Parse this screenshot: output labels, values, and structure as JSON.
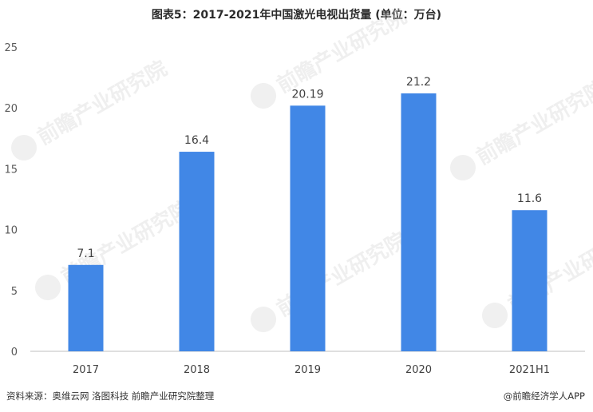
{
  "chart_data": {
    "type": "bar",
    "title": "图表5：2017-2021年中国激光电视出货量 (单位：万台)",
    "categories": [
      "2017",
      "2018",
      "2019",
      "2020",
      "2021H1"
    ],
    "values": [
      7.1,
      16.4,
      20.19,
      21.2,
      11.6
    ],
    "value_labels": [
      "7.1",
      "16.4",
      "20.19",
      "21.2",
      "11.6"
    ],
    "ylim": [
      0,
      25
    ],
    "yticks": [
      "0",
      "5",
      "10",
      "15",
      "20",
      "25"
    ],
    "grid": false,
    "bar_color": "#4187e6"
  },
  "footer": {
    "source": "资料来源：奥维云网 洛图科技 前瞻产业研究院整理",
    "credit": "@前瞻经济学人APP"
  },
  "watermark": {
    "text": "前瞻产业研究院"
  }
}
